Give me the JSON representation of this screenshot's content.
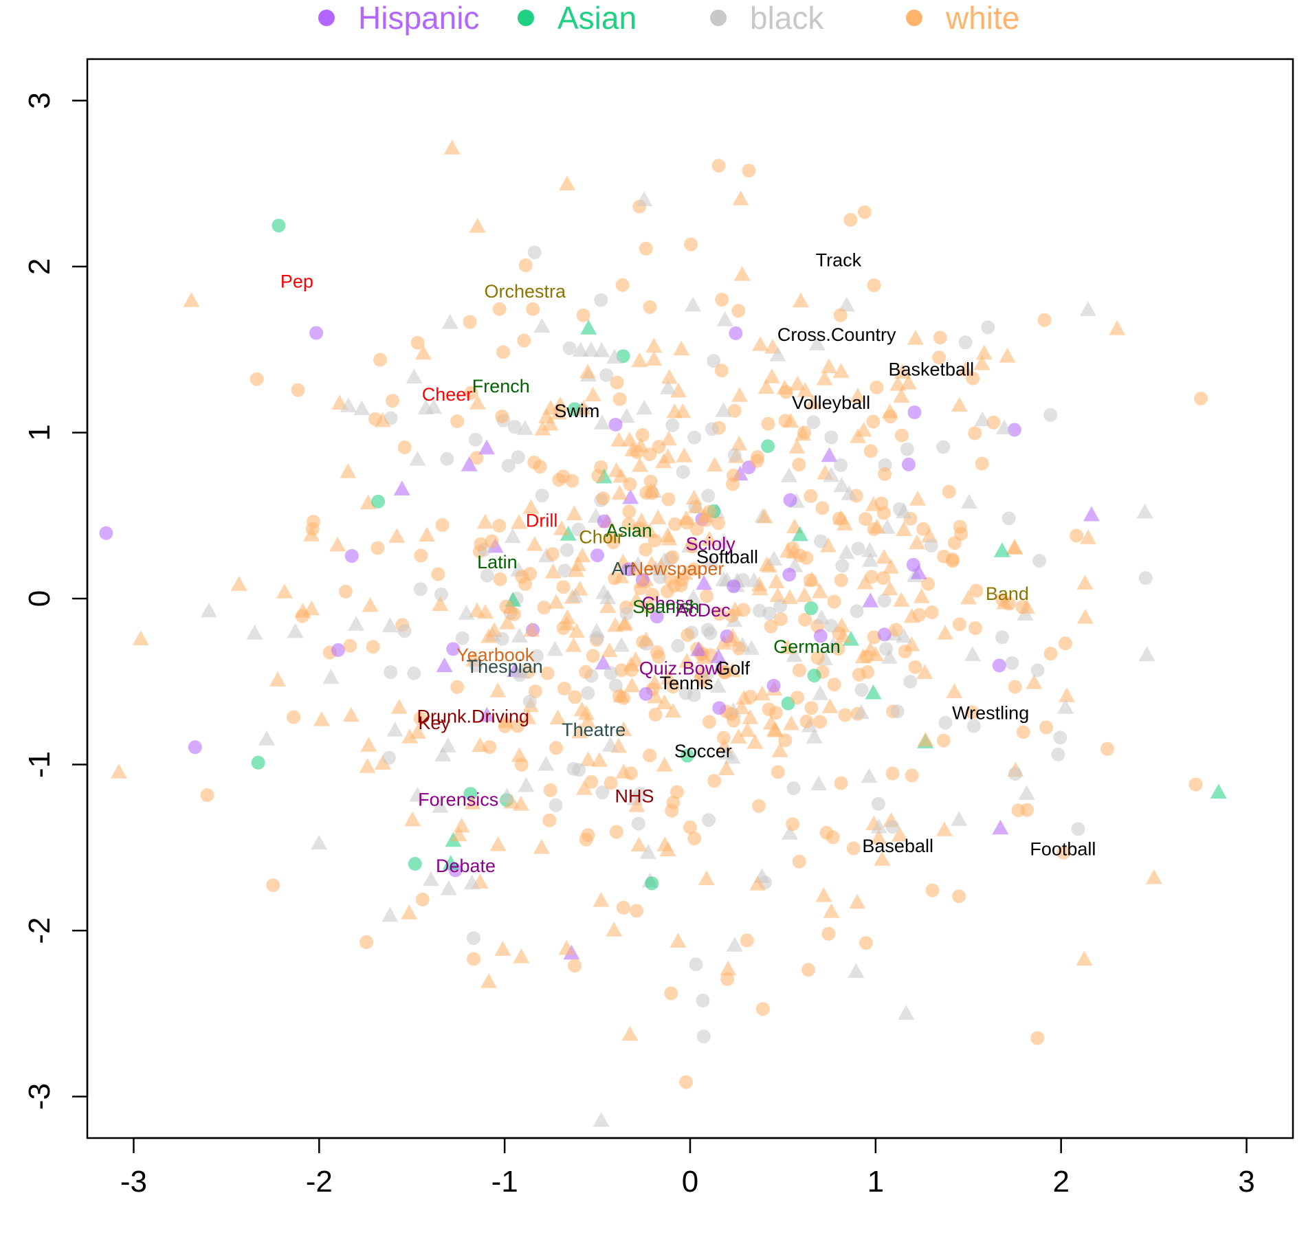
{
  "chart_data": {
    "type": "scatter",
    "title": "",
    "xlabel": "",
    "ylabel": "",
    "xlim": [
      -3.25,
      3.25
    ],
    "ylim": [
      -3.25,
      3.25
    ],
    "x_ticks": [
      "-3",
      "-2",
      "-1",
      "0",
      "1",
      "2",
      "3"
    ],
    "y_ticks": [
      "-3",
      "-2",
      "-1",
      "0",
      "1",
      "2",
      "3"
    ],
    "grid": false,
    "legend_position": "top",
    "legend": [
      {
        "label": "Hispanic",
        "color": "#b266ff"
      },
      {
        "label": "Asian",
        "color": "#1fd082"
      },
      {
        "label": "black",
        "color": "#c8c8c8"
      },
      {
        "label": "white",
        "color": "#ffb36b"
      }
    ],
    "marker_shapes": [
      "circle",
      "triangle"
    ],
    "club_labels": [
      {
        "text": "Track",
        "x": 0.8,
        "y": 2.04,
        "color": "#000000"
      },
      {
        "text": "Pep",
        "x": -2.12,
        "y": 1.91,
        "color": "#ff0000"
      },
      {
        "text": "Orchestra",
        "x": -0.89,
        "y": 1.85,
        "color": "#8b7500"
      },
      {
        "text": "Cross.Country",
        "x": 0.79,
        "y": 1.59,
        "color": "#000000"
      },
      {
        "text": "Basketball",
        "x": 1.3,
        "y": 1.38,
        "color": "#000000"
      },
      {
        "text": "French",
        "x": -1.02,
        "y": 1.28,
        "color": "#006400"
      },
      {
        "text": "Cheer",
        "x": -1.31,
        "y": 1.23,
        "color": "#ff0000"
      },
      {
        "text": "Volleyball",
        "x": 0.76,
        "y": 1.18,
        "color": "#000000"
      },
      {
        "text": "Swim",
        "x": -0.61,
        "y": 1.13,
        "color": "#000000"
      },
      {
        "text": "Drill",
        "x": -0.8,
        "y": 0.47,
        "color": "#ff0000"
      },
      {
        "text": "Asian",
        "x": -0.33,
        "y": 0.41,
        "color": "#006400"
      },
      {
        "text": "Choir",
        "x": -0.48,
        "y": 0.37,
        "color": "#8b7500"
      },
      {
        "text": "Scioly",
        "x": 0.11,
        "y": 0.33,
        "color": "#8b008b"
      },
      {
        "text": "Softball",
        "x": 0.2,
        "y": 0.25,
        "color": "#000000"
      },
      {
        "text": "Latin",
        "x": -1.04,
        "y": 0.22,
        "color": "#006400"
      },
      {
        "text": "Art",
        "x": -0.36,
        "y": 0.18,
        "color": "#2f4f4f"
      },
      {
        "text": "Newspaper",
        "x": -0.07,
        "y": 0.18,
        "color": "#d2691e"
      },
      {
        "text": "Band",
        "x": 1.71,
        "y": 0.03,
        "color": "#8b7500"
      },
      {
        "text": "Chess",
        "x": -0.12,
        "y": -0.03,
        "color": "#8b008b"
      },
      {
        "text": "Spanish",
        "x": -0.13,
        "y": -0.05,
        "color": "#006400"
      },
      {
        "text": "AcDec",
        "x": 0.07,
        "y": -0.07,
        "color": "#8b008b"
      },
      {
        "text": "German",
        "x": 0.63,
        "y": -0.29,
        "color": "#006400"
      },
      {
        "text": "Yearbook",
        "x": -1.05,
        "y": -0.34,
        "color": "#d2691e"
      },
      {
        "text": "Thespian",
        "x": -1.0,
        "y": -0.41,
        "color": "#2f4f4f"
      },
      {
        "text": "Quiz.Bowl",
        "x": -0.05,
        "y": -0.42,
        "color": "#8b008b"
      },
      {
        "text": "Golf",
        "x": 0.23,
        "y": -0.42,
        "color": "#000000"
      },
      {
        "text": "Tennis",
        "x": -0.02,
        "y": -0.51,
        "color": "#000000"
      },
      {
        "text": "Wrestling",
        "x": 1.62,
        "y": -0.69,
        "color": "#000000"
      },
      {
        "text": "Drunk.Driving",
        "x": -1.17,
        "y": -0.71,
        "color": "#8b0000"
      },
      {
        "text": "Key",
        "x": -1.38,
        "y": -0.75,
        "color": "#8b0000"
      },
      {
        "text": "Theatre",
        "x": -0.52,
        "y": -0.79,
        "color": "#2f4f4f"
      },
      {
        "text": "Soccer",
        "x": 0.07,
        "y": -0.92,
        "color": "#000000"
      },
      {
        "text": "NHS",
        "x": -0.3,
        "y": -1.19,
        "color": "#8b0000"
      },
      {
        "text": "Forensics",
        "x": -1.25,
        "y": -1.21,
        "color": "#8b008b"
      },
      {
        "text": "Baseball",
        "x": 1.12,
        "y": -1.49,
        "color": "#000000"
      },
      {
        "text": "Football",
        "x": 2.01,
        "y": -1.51,
        "color": "#000000"
      },
      {
        "text": "Debate",
        "x": -1.21,
        "y": -1.61,
        "color": "#8b008b"
      }
    ]
  }
}
